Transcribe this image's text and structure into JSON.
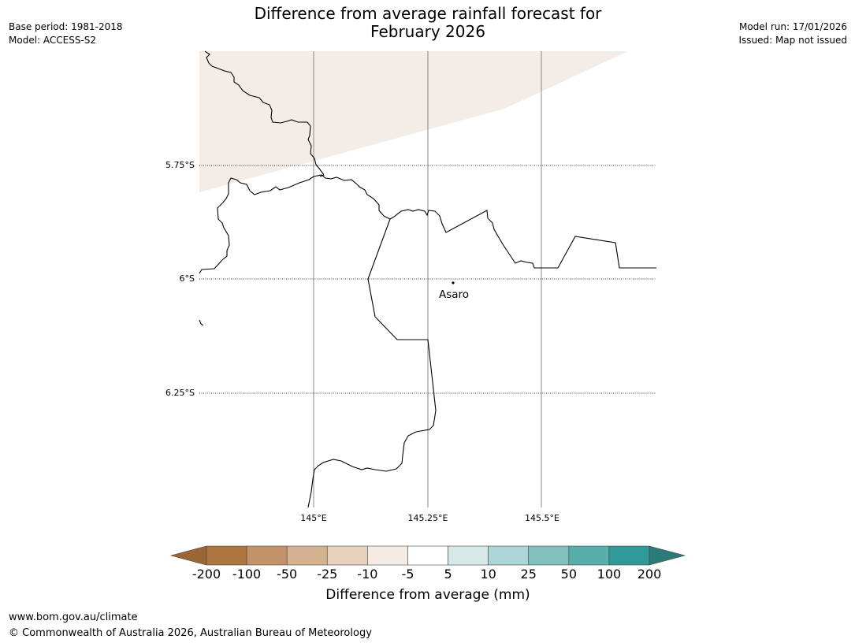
{
  "title": {
    "line1": "Difference from average rainfall forecast for",
    "line2": "February 2026"
  },
  "meta": {
    "base_period": "Base period: 1981-2018",
    "model": "Model: ACCESS-S2",
    "model_run": "Model run: 17/01/2026",
    "issued": "Issued: Map not issued"
  },
  "map": {
    "lat_labels": [
      "5.75°S",
      "6°S",
      "6.25°S"
    ],
    "lon_labels": [
      "145°E",
      "145.25°E",
      "145.5°E"
    ],
    "place": "Asaro"
  },
  "colorbar": {
    "ticks": [
      "-200",
      "-100",
      "-50",
      "-25",
      "-10",
      "-5",
      "5",
      "10",
      "25",
      "50",
      "100",
      "200"
    ],
    "colors": [
      "#9b6534",
      "#ae763f",
      "#c29269",
      "#d4b28f",
      "#e6d1bd",
      "#f4ebe4",
      "#ffffff",
      "#d6e9e8",
      "#acd6d5",
      "#82c0be",
      "#57aeaa",
      "#31999a",
      "#2c7b78"
    ],
    "label": "Difference from average (mm)"
  },
  "colors": {
    "slight_dry_fill": "#f4ede7",
    "border": "#000000",
    "meridian": "#888888"
  },
  "footer": {
    "url": "www.bom.gov.au/climate",
    "copyright": "© Commonwealth of Australia 2026, Australian Bureau of Meteorology"
  }
}
